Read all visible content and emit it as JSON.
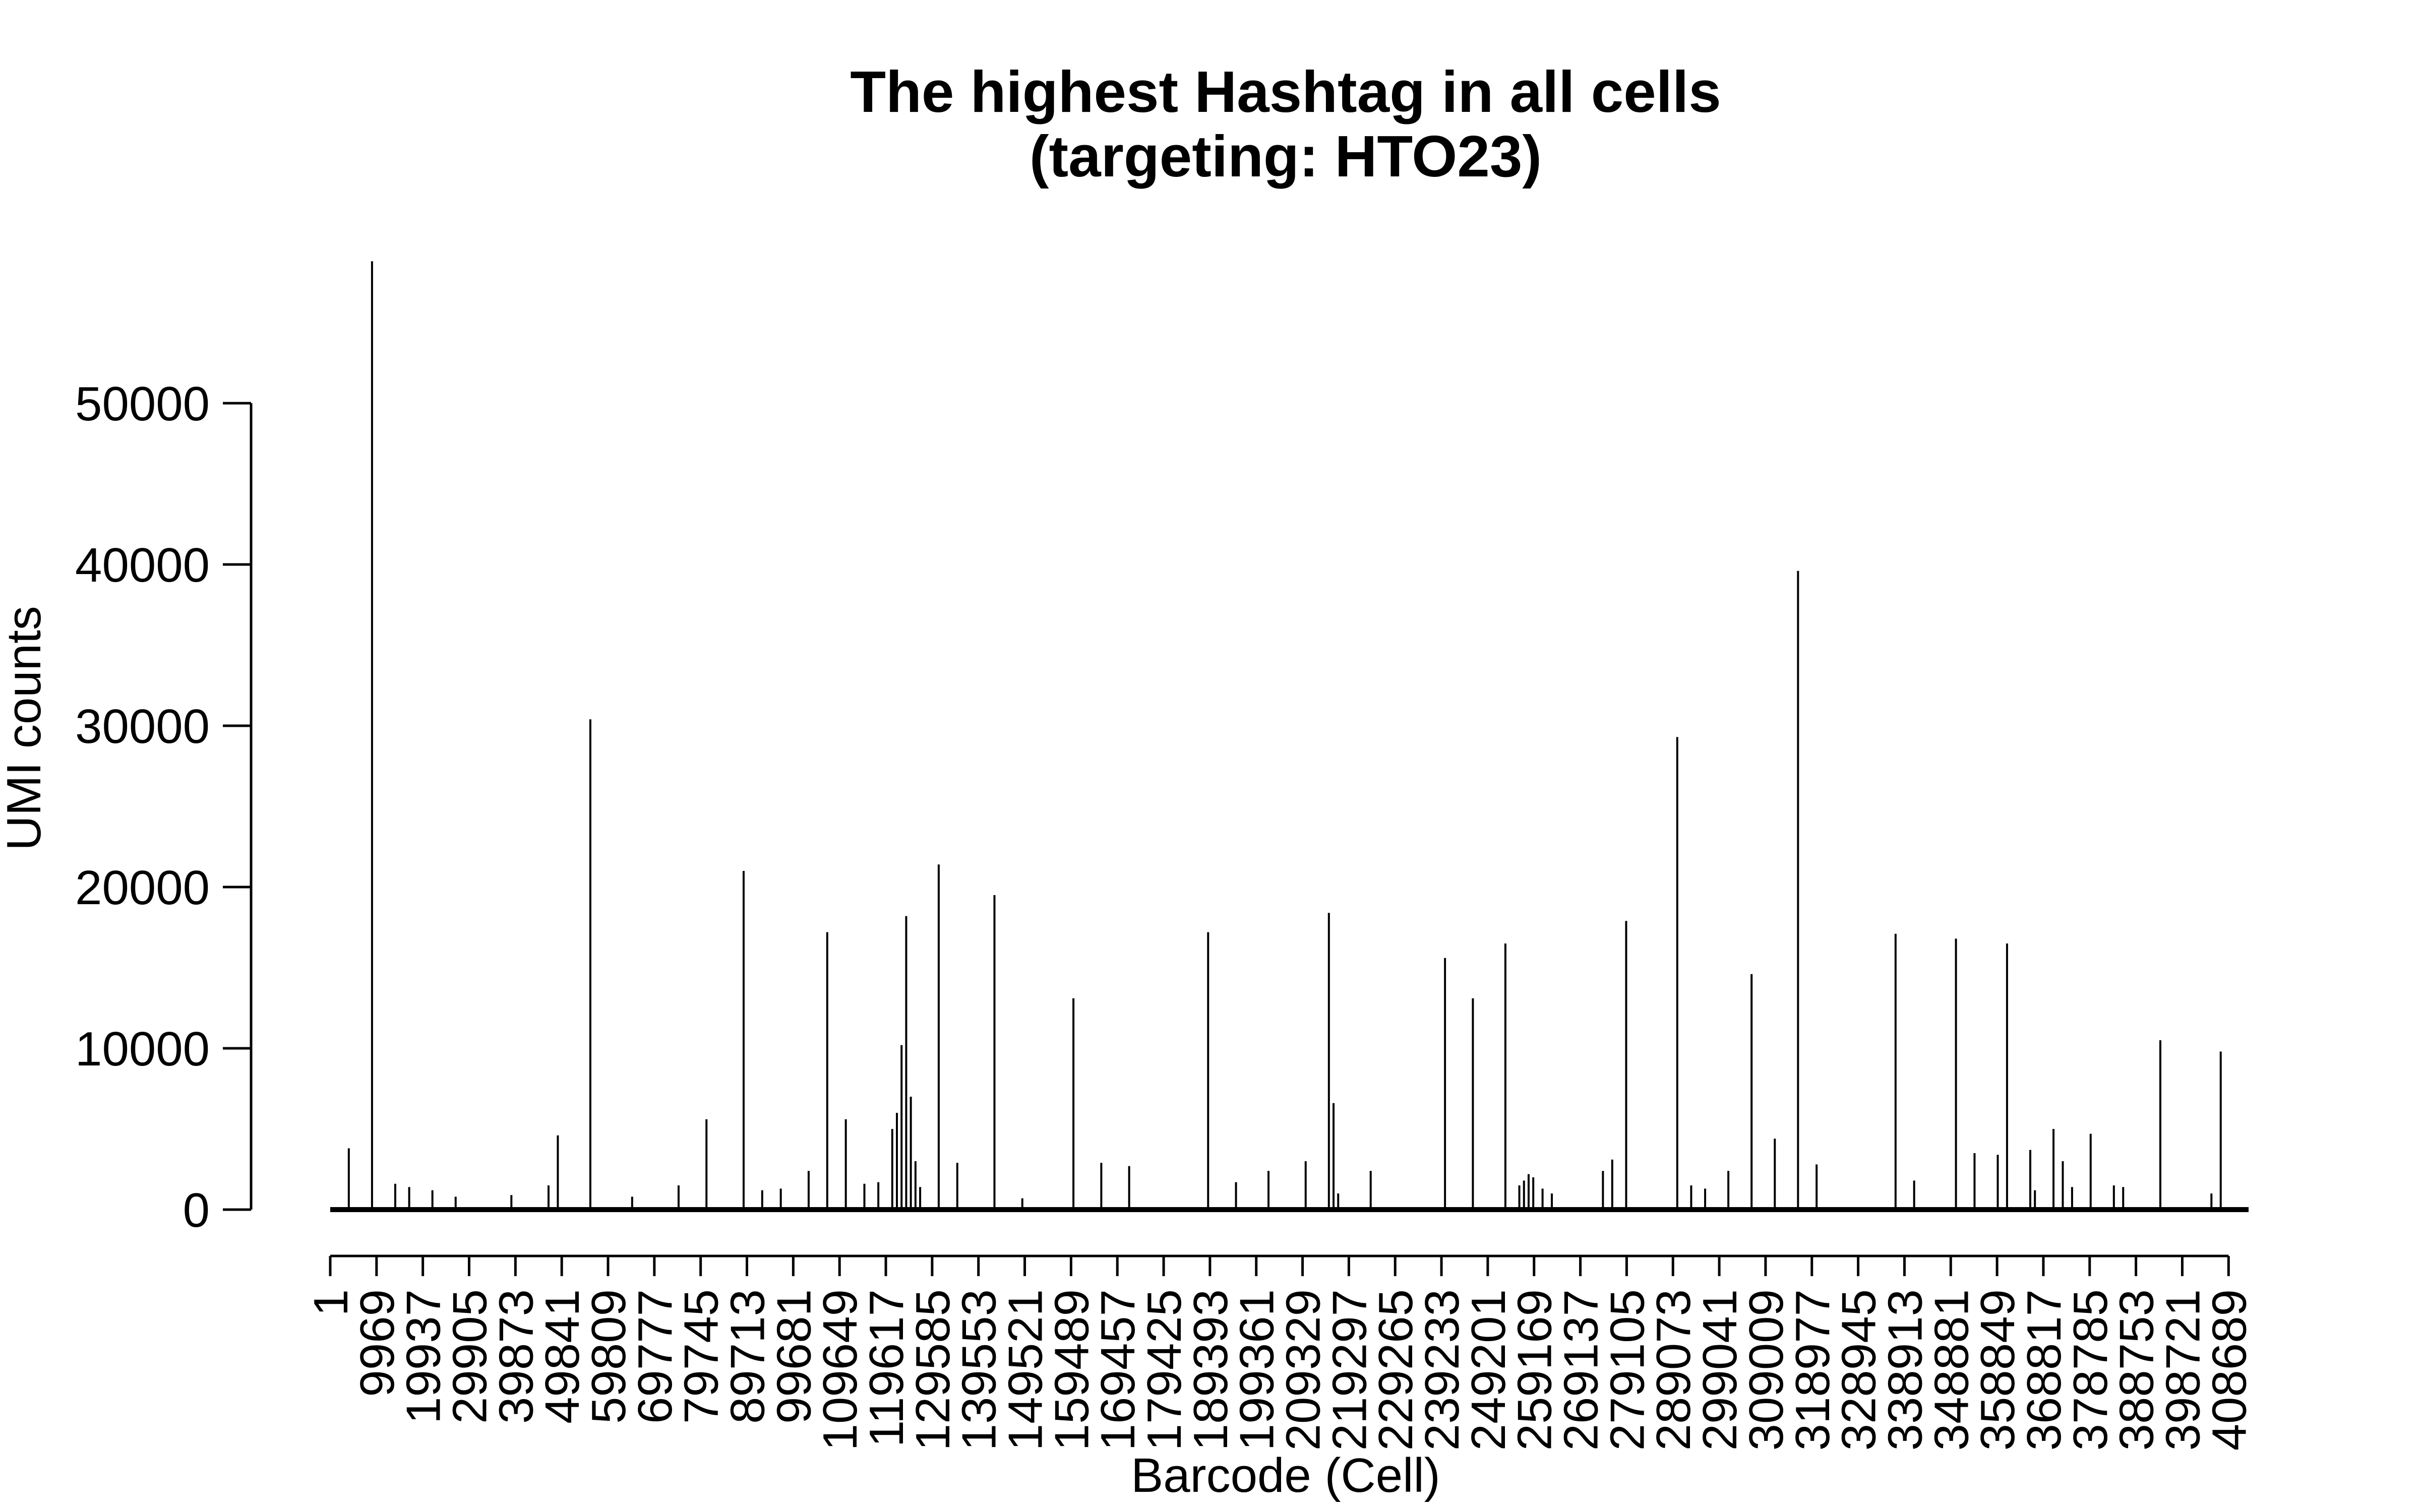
{
  "chart_data": {
    "type": "bar",
    "title": [
      "The highest Hashtag in all cells",
      "(targeting: HTO23)"
    ],
    "xlabel": "Barcode (Cell)",
    "ylabel": "UMI counts",
    "ylim": [
      0,
      60000
    ],
    "yticks": [
      0,
      10000,
      20000,
      30000,
      40000,
      50000
    ],
    "xlim": [
      1,
      413000
    ],
    "xticks": [
      1,
      9969,
      19937,
      29905,
      39873,
      49841,
      59809,
      69777,
      79745,
      89713,
      99681,
      109649,
      119617,
      129585,
      139553,
      149521,
      159489,
      169457,
      179425,
      189393,
      199361,
      209329,
      219297,
      229265,
      239233,
      249201,
      259169,
      269137,
      279105,
      289073,
      299041,
      309009,
      318977,
      328945,
      338913,
      348881,
      358849,
      368817,
      378785,
      388753,
      398721,
      408689
    ],
    "x": [
      4000,
      9000,
      14000,
      17000,
      22000,
      27000,
      39000,
      47000,
      49000,
      56000,
      65000,
      75000,
      81000,
      89000,
      93000,
      97000,
      103000,
      107000,
      111000,
      115000,
      118000,
      121000,
      122000,
      123000,
      124000,
      125000,
      126000,
      127000,
      131000,
      135000,
      143000,
      149000,
      160000,
      166000,
      172000,
      189000,
      195000,
      202000,
      210000,
      215000,
      216000,
      217000,
      224000,
      240000,
      246000,
      253000,
      256000,
      257000,
      258000,
      259000,
      261000,
      263000,
      274000,
      276000,
      279000,
      290000,
      293000,
      296000,
      301000,
      306000,
      311000,
      316000,
      320000,
      337000,
      341000,
      350000,
      354000,
      359000,
      361000,
      366000,
      367000,
      371000,
      373000,
      375000,
      379000,
      384000,
      386000,
      394000,
      405000,
      407000
    ],
    "values": [
      3800,
      58800,
      1600,
      1400,
      1200,
      800,
      900,
      1500,
      4600,
      30400,
      800,
      1500,
      5600,
      21000,
      1200,
      1300,
      2400,
      17200,
      5600,
      1600,
      1700,
      5000,
      6000,
      10200,
      18200,
      7000,
      3000,
      1400,
      21400,
      2900,
      19500,
      700,
      13100,
      2900,
      2700,
      17200,
      1700,
      2400,
      3000,
      18400,
      6600,
      1000,
      2400,
      15600,
      13100,
      16500,
      1500,
      1800,
      2200,
      2000,
      1300,
      1000,
      2400,
      3100,
      17900,
      29300,
      1500,
      1300,
      2400,
      14600,
      4400,
      39600,
      2800,
      17100,
      1800,
      16800,
      3500,
      3400,
      16500,
      3700,
      1200,
      5000,
      3000,
      1400,
      4700,
      1500,
      1400,
      10500,
      1000,
      9800
    ]
  }
}
